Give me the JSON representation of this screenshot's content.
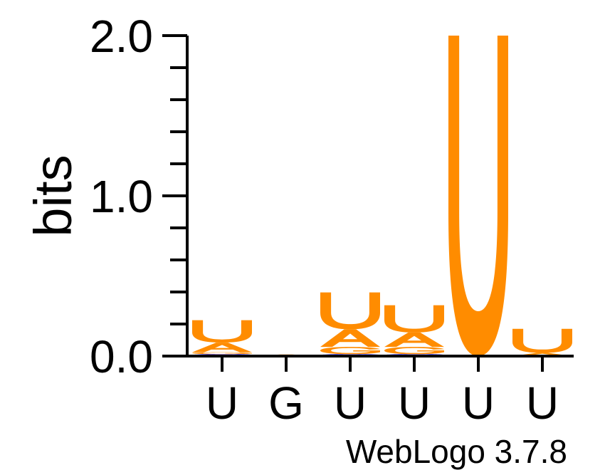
{
  "chart_data": {
    "type": "sequence-logo",
    "ylabel": "bits",
    "ylim": [
      0,
      2.0
    ],
    "yticks": [
      {
        "value": 0.0,
        "label": "0.0"
      },
      {
        "value": 1.0,
        "label": "1.0"
      },
      {
        "value": 2.0,
        "label": "2.0"
      }
    ],
    "minor_tick_step": 0.2,
    "categories": [
      "U",
      "G",
      "U",
      "U",
      "U",
      "U"
    ],
    "colors": {
      "U": "#ff8c00",
      "A": "#ff8c00",
      "G": "#ff8c00",
      "C": "#0000ff"
    },
    "positions": [
      {
        "consensus": "U",
        "stack": [
          {
            "letter": "C",
            "bits": 0.012
          },
          {
            "letter": "G",
            "bits": 0.012
          },
          {
            "letter": "A",
            "bits": 0.06
          },
          {
            "letter": "U",
            "bits": 0.14
          }
        ]
      },
      {
        "consensus": "G",
        "stack": [
          {
            "letter": "A",
            "bits": 0.01
          }
        ]
      },
      {
        "consensus": "U",
        "stack": [
          {
            "letter": "C",
            "bits": 0.012
          },
          {
            "letter": "G",
            "bits": 0.045
          },
          {
            "letter": "A",
            "bits": 0.11
          },
          {
            "letter": "U",
            "bits": 0.23
          }
        ]
      },
      {
        "consensus": "U",
        "stack": [
          {
            "letter": "C",
            "bits": 0.012
          },
          {
            "letter": "G",
            "bits": 0.045
          },
          {
            "letter": "A",
            "bits": 0.09
          },
          {
            "letter": "U",
            "bits": 0.17
          }
        ]
      },
      {
        "consensus": "U",
        "stack": [
          {
            "letter": "U",
            "bits": 2.0
          }
        ]
      },
      {
        "consensus": "U",
        "stack": [
          {
            "letter": "A",
            "bits": 0.02
          },
          {
            "letter": "U",
            "bits": 0.15
          }
        ]
      }
    ]
  },
  "footer": "WebLogo 3.7.8"
}
